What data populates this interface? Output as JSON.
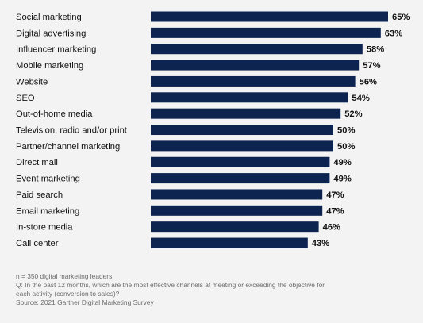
{
  "chart_data": {
    "type": "bar",
    "orientation": "horizontal",
    "categories": [
      "Social marketing",
      "Digital advertising",
      "Influencer marketing",
      "Mobile marketing",
      "Website",
      "SEO",
      "Out-of-home media",
      "Television, radio and/or print",
      "Partner/channel marketing",
      "Direct mail",
      "Event marketing",
      "Paid search",
      "Email marketing",
      "In-store media",
      "Call center"
    ],
    "values": [
      65,
      63,
      58,
      57,
      56,
      54,
      52,
      50,
      50,
      49,
      49,
      47,
      47,
      46,
      43
    ],
    "value_labels": [
      "65%",
      "63%",
      "58%",
      "57%",
      "56%",
      "54%",
      "52%",
      "50%",
      "50%",
      "49%",
      "49%",
      "47%",
      "47%",
      "46%",
      "43%"
    ],
    "unit": "%",
    "title": "",
    "xlabel": "",
    "ylabel": "",
    "xlim": [
      0,
      65
    ],
    "grid": false,
    "legend": "none",
    "bar_color": "#0d2450"
  },
  "notes": {
    "sample": "n = 350 digital marketing leaders",
    "question_line1": "Q: In the past 12 months, which are the most effective channels at meeting or exceeding the objective for",
    "question_line2": "each activity (conversion to sales)?",
    "source": "Source: 2021 Gartner Digital Marketing Survey"
  }
}
